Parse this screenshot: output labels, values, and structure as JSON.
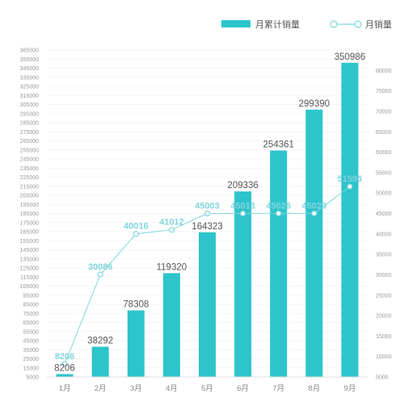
{
  "chart_data": {
    "type": "bar",
    "categories": [
      "1月",
      "2月",
      "3月",
      "4月",
      "5月",
      "6月",
      "7月",
      "8月",
      "9月"
    ],
    "series": [
      {
        "name": "月累计销量",
        "type": "bar",
        "axis": "left",
        "color": "#2ec4cc",
        "values": [
          8206,
          38292,
          78308,
          119320,
          164323,
          209336,
          254361,
          299390,
          350986
        ]
      },
      {
        "name": "月销量",
        "type": "line",
        "axis": "right",
        "color": "#7fd6dc",
        "values": [
          8206,
          30086,
          40016,
          41012,
          45003,
          45013,
          45025,
          45029,
          51596
        ]
      }
    ],
    "y_left": {
      "ylim": [
        5000,
        365000
      ],
      "ticks": [
        5000,
        15000,
        25000,
        35000,
        45000,
        55000,
        65000,
        75000,
        85000,
        95000,
        105000,
        115000,
        125000,
        135000,
        145000,
        155000,
        165000,
        175000,
        185000,
        195000,
        205000,
        215000,
        225000,
        235000,
        245000,
        255000,
        265000,
        275000,
        285000,
        295000,
        305000,
        315000,
        325000,
        335000,
        345000,
        355000,
        365000
      ]
    },
    "y_right": {
      "ylim": [
        5000,
        85000
      ],
      "ticks": [
        5000,
        10000,
        15000,
        20000,
        25000,
        30000,
        35000,
        40000,
        45000,
        50000,
        55000,
        60000,
        65000,
        70000,
        75000,
        80000
      ]
    },
    "legend": {
      "placement": "top-right",
      "items": [
        {
          "label": "月累计销量",
          "marker": "bar"
        },
        {
          "label": "月销量",
          "marker": "line"
        }
      ]
    },
    "grid": true
  }
}
